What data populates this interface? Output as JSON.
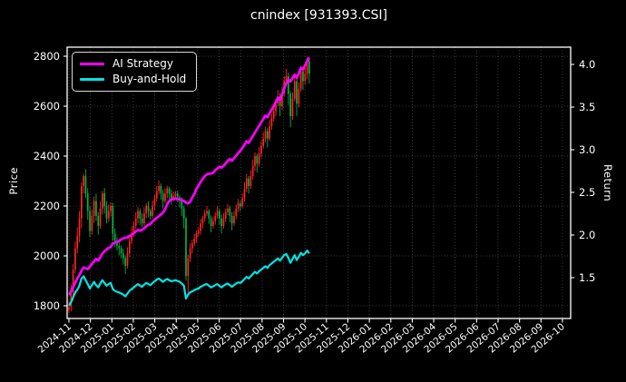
{
  "chart_data": {
    "type": "candlestick+line",
    "title": "cnindex [931393.CSI]",
    "ylabel_left": "Price",
    "ylabel_right": "Return",
    "grid": "dotted",
    "background": "#000000",
    "foreground": "#ffffff",
    "left_ticks": [
      1800,
      2000,
      2200,
      2400,
      2600,
      2800
    ],
    "right_ticks": [
      1.5,
      2.0,
      2.5,
      3.0,
      3.5,
      4.0
    ],
    "left_ylim": [
      1749,
      2836
    ],
    "right_ylim": [
      1.03,
      4.2
    ],
    "x_tick_labels": [
      "2024-11",
      "2024-12",
      "2025-01",
      "2025-02",
      "2025-03",
      "2025-04",
      "2025-05",
      "2025-06",
      "2025-07",
      "2025-08",
      "2025-09",
      "2025-10",
      "2025-11",
      "2025-12",
      "2026-01",
      "2026-02",
      "2026-03",
      "2026-04",
      "2026-05",
      "2026-06",
      "2026-07",
      "2026-08",
      "2026-09",
      "2026-10"
    ],
    "data_span_months": 11.2,
    "colors": {
      "up": "#ff2222",
      "down": "#00b244",
      "ai": "#ff00ff",
      "bh": "#00e5e5",
      "grid": "rgba(255,255,255,0.32)"
    },
    "legend": {
      "position": "upper-left",
      "items": [
        {
          "label": "AI Strategy",
          "color": "#ff00ff"
        },
        {
          "label": "Buy-and-Hold",
          "color": "#00e5e5"
        }
      ]
    },
    "series": [
      {
        "name": "AI Strategy",
        "axis": "right",
        "style": "line"
      },
      {
        "name": "Buy-and-Hold",
        "axis": "right",
        "style": "line",
        "derived": "close / 1530",
        "divisor": 1530
      },
      {
        "name": "cnindex OHLC",
        "axis": "left",
        "style": "candlestick",
        "open_rule": "previous_close",
        "first_open": 1783
      }
    ],
    "candles_close_hiwick_lowick": [
      [
        1795,
        25,
        12
      ],
      [
        1855,
        30,
        18
      ],
      [
        1945,
        22,
        35
      ],
      [
        2030,
        28,
        15
      ],
      [
        2080,
        35,
        20
      ],
      [
        2150,
        30,
        25
      ],
      [
        2280,
        15,
        40
      ],
      [
        2320,
        10,
        30
      ],
      [
        2250,
        28,
        18
      ],
      [
        2180,
        22,
        35
      ],
      [
        2100,
        18,
        25
      ],
      [
        2160,
        25,
        15
      ],
      [
        2220,
        18,
        28
      ],
      [
        2160,
        30,
        20
      ],
      [
        2120,
        15,
        35
      ],
      [
        2190,
        28,
        12
      ],
      [
        2250,
        10,
        25
      ],
      [
        2200,
        22,
        30
      ],
      [
        2150,
        18,
        20
      ],
      [
        2180,
        25,
        15
      ],
      [
        2200,
        15,
        22
      ],
      [
        2090,
        12,
        30
      ],
      [
        2060,
        20,
        25
      ],
      [
        2040,
        15,
        18
      ],
      [
        2030,
        22,
        28
      ],
      [
        2010,
        10,
        20
      ],
      [
        1990,
        18,
        25
      ],
      [
        1960,
        12,
        32
      ],
      [
        2010,
        25,
        10
      ],
      [
        2060,
        20,
        15
      ],
      [
        2090,
        28,
        12
      ],
      [
        2120,
        18,
        15
      ],
      [
        2150,
        25,
        10
      ],
      [
        2180,
        15,
        20
      ],
      [
        2150,
        10,
        28
      ],
      [
        2130,
        20,
        15
      ],
      [
        2170,
        25,
        12
      ],
      [
        2200,
        12,
        18
      ],
      [
        2180,
        18,
        25
      ],
      [
        2160,
        10,
        15
      ],
      [
        2200,
        22,
        10
      ],
      [
        2230,
        15,
        18
      ],
      [
        2260,
        20,
        12
      ],
      [
        2280,
        22,
        15
      ],
      [
        2250,
        10,
        25
      ],
      [
        2220,
        15,
        30
      ],
      [
        2250,
        20,
        10
      ],
      [
        2270,
        12,
        18
      ],
      [
        2250,
        8,
        22
      ],
      [
        2230,
        15,
        25
      ],
      [
        2240,
        18,
        10
      ],
      [
        2250,
        10,
        15
      ],
      [
        2235,
        12,
        20
      ],
      [
        2220,
        8,
        25
      ],
      [
        2190,
        15,
        30
      ],
      [
        2150,
        10,
        40
      ],
      [
        1920,
        8,
        20
      ],
      [
        1990,
        15,
        70
      ],
      [
        2030,
        20,
        15
      ],
      [
        2050,
        15,
        20
      ],
      [
        2070,
        18,
        12
      ],
      [
        2090,
        12,
        18
      ],
      [
        2100,
        15,
        10
      ],
      [
        2130,
        18,
        15
      ],
      [
        2150,
        10,
        20
      ],
      [
        2170,
        15,
        12
      ],
      [
        2180,
        20,
        10
      ],
      [
        2150,
        8,
        22
      ],
      [
        2120,
        12,
        25
      ],
      [
        2140,
        18,
        10
      ],
      [
        2160,
        15,
        15
      ],
      [
        2180,
        20,
        12
      ],
      [
        2150,
        10,
        25
      ],
      [
        2120,
        15,
        30
      ],
      [
        2150,
        20,
        10
      ],
      [
        2175,
        15,
        15
      ],
      [
        2190,
        18,
        12
      ],
      [
        2160,
        10,
        25
      ],
      [
        2130,
        15,
        28
      ],
      [
        2160,
        20,
        10
      ],
      [
        2190,
        15,
        12
      ],
      [
        2210,
        18,
        15
      ],
      [
        2200,
        10,
        20
      ],
      [
        2230,
        20,
        10
      ],
      [
        2270,
        25,
        12
      ],
      [
        2310,
        18,
        15
      ],
      [
        2280,
        10,
        30
      ],
      [
        2320,
        22,
        12
      ],
      [
        2360,
        25,
        15
      ],
      [
        2400,
        15,
        20
      ],
      [
        2370,
        10,
        35
      ],
      [
        2410,
        25,
        12
      ],
      [
        2440,
        20,
        15
      ],
      [
        2470,
        25,
        10
      ],
      [
        2500,
        18,
        15
      ],
      [
        2470,
        12,
        35
      ],
      [
        2520,
        25,
        10
      ],
      [
        2550,
        20,
        15
      ],
      [
        2580,
        28,
        12
      ],
      [
        2610,
        18,
        20
      ],
      [
        2640,
        25,
        10
      ],
      [
        2600,
        12,
        40
      ],
      [
        2650,
        28,
        15
      ],
      [
        2700,
        20,
        12
      ],
      [
        2720,
        30,
        15
      ],
      [
        2650,
        15,
        45
      ],
      [
        2560,
        10,
        45
      ],
      [
        2630,
        25,
        15
      ],
      [
        2700,
        28,
        10
      ],
      [
        2610,
        12,
        50
      ],
      [
        2670,
        25,
        15
      ],
      [
        2740,
        20,
        12
      ],
      [
        2700,
        10,
        35
      ],
      [
        2730,
        25,
        15
      ],
      [
        2780,
        15,
        20
      ],
      [
        2730,
        10,
        40
      ]
    ],
    "ai_return": [
      1.3,
      1.34,
      1.39,
      1.44,
      1.49,
      1.53,
      1.58,
      1.62,
      1.61,
      1.6,
      1.63,
      1.66,
      1.69,
      1.72,
      1.7,
      1.74,
      1.78,
      1.81,
      1.83,
      1.85,
      1.86,
      1.9,
      1.91,
      1.92,
      1.93,
      1.95,
      1.96,
      1.97,
      1.97,
      1.99,
      2.0,
      2.02,
      2.04,
      2.06,
      2.05,
      2.06,
      2.08,
      2.1,
      2.12,
      2.13,
      2.16,
      2.18,
      2.2,
      2.22,
      2.24,
      2.26,
      2.3,
      2.36,
      2.4,
      2.42,
      2.42,
      2.43,
      2.42,
      2.42,
      2.41,
      2.4,
      2.38,
      2.37,
      2.39,
      2.44,
      2.48,
      2.54,
      2.58,
      2.62,
      2.66,
      2.69,
      2.71,
      2.72,
      2.72,
      2.73,
      2.76,
      2.78,
      2.8,
      2.79,
      2.81,
      2.84,
      2.87,
      2.89,
      2.87,
      2.9,
      2.93,
      2.96,
      2.99,
      3.02,
      3.06,
      3.1,
      3.08,
      3.12,
      3.16,
      3.2,
      3.24,
      3.28,
      3.32,
      3.36,
      3.4,
      3.38,
      3.43,
      3.47,
      3.51,
      3.56,
      3.61,
      3.58,
      3.65,
      3.72,
      3.78,
      3.82,
      3.8,
      3.84,
      3.88,
      3.84,
      3.9,
      3.96,
      3.94,
      3.99,
      4.04,
      4.08
    ]
  }
}
